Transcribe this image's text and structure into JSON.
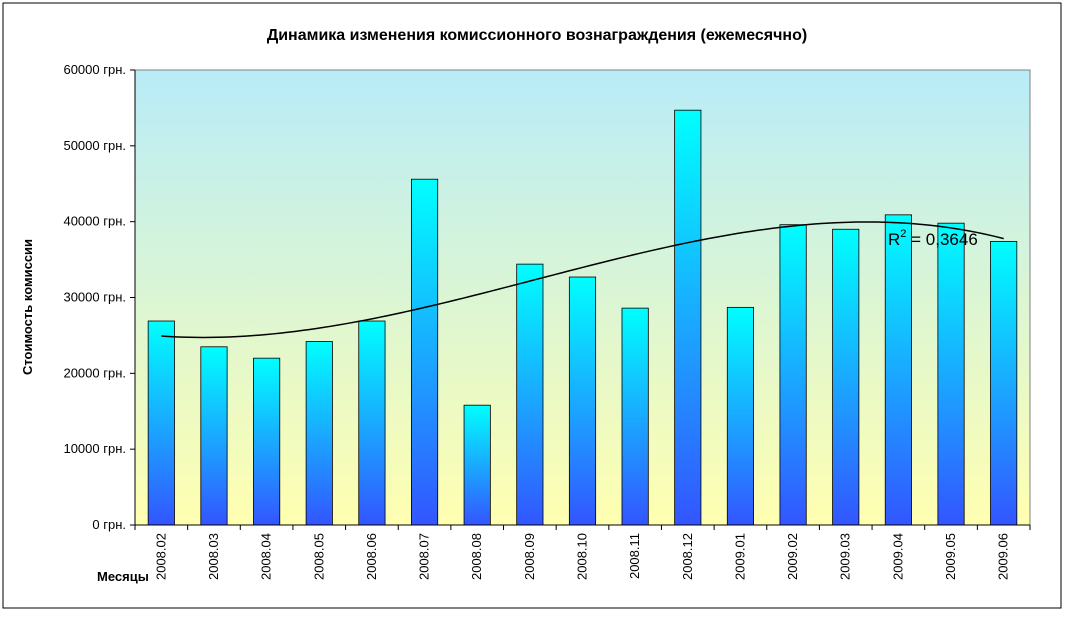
{
  "chart_data": {
    "type": "bar",
    "title": "Динамика изменения комиссионного вознаграждения (ежемесячно)",
    "xlabel": "Месяцы",
    "ylabel": "Стоимость комиссии",
    "categories": [
      "2008.02",
      "2008.03",
      "2008.04",
      "2008.05",
      "2008.06",
      "2008.07",
      "2008.08",
      "2008.09",
      "2008.10",
      "2008.11",
      "2008.12",
      "2009.01",
      "2009.02",
      "2009.03",
      "2009.04",
      "2009.05",
      "2009.06"
    ],
    "values": [
      26900,
      23500,
      22000,
      24200,
      26900,
      45600,
      15800,
      34400,
      32700,
      28600,
      54700,
      28700,
      39600,
      39000,
      40900,
      39800,
      37400
    ],
    "ylim": [
      0,
      60000
    ],
    "yticks": [
      0,
      10000,
      20000,
      30000,
      40000,
      50000,
      60000
    ],
    "ytick_labels": [
      "0 грн.",
      "10000 грн.",
      "20000 грн.",
      "30000 грн.",
      "40000 грн.",
      "50000 грн.",
      "60000 грн."
    ],
    "trendline": {
      "type": "polynomial",
      "label_prefix": "R",
      "label_sup": "2",
      "label_value": " = 0,3646",
      "color": "#000000"
    },
    "grid": false,
    "legend": "none",
    "colors": {
      "bar_top": "#00ffff",
      "bar_bottom": "#3355ff",
      "plot_top": "#b8ecf8",
      "plot_bottom": "#ffffb0"
    }
  }
}
